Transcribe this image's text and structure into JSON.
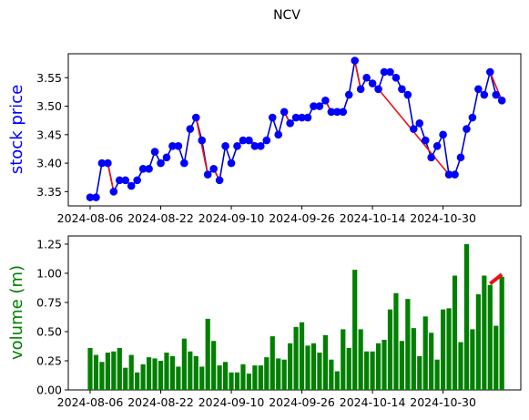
{
  "title": "NCV",
  "colors": {
    "price_line": "#0000cc",
    "price_marker": "#0000ff",
    "trend": "#ee1111",
    "volume_bar": "#008000",
    "ylabel_price": "#0000ff",
    "ylabel_volume": "#008000"
  },
  "chart_data": [
    {
      "type": "line",
      "ylabel": "stock price",
      "xlabel": "",
      "ylim": [
        3.325,
        3.592
      ],
      "yticks": [
        3.35,
        3.4,
        3.45,
        3.5,
        3.55
      ],
      "ytick_labels": [
        "3.35",
        "3.40",
        "3.45",
        "3.50",
        "3.55"
      ],
      "xticks": [
        "2024-08-06",
        "2024-08-22",
        "2024-09-10",
        "2024-09-26",
        "2024-10-14",
        "2024-10-30"
      ],
      "xtick_index": [
        0,
        12,
        24,
        36,
        48,
        60
      ],
      "series": [
        {
          "values": [
            3.34,
            3.34,
            3.4,
            3.4,
            3.35,
            3.37,
            3.37,
            3.36,
            3.37,
            3.39,
            3.39,
            3.42,
            3.4,
            3.41,
            3.43,
            3.43,
            3.4,
            3.46,
            3.48,
            3.44,
            3.38,
            3.39,
            3.37,
            3.43,
            3.4,
            3.43,
            3.44,
            3.44,
            3.43,
            3.43,
            3.44,
            3.48,
            3.45,
            3.49,
            3.47,
            3.48,
            3.48,
            3.48,
            3.5,
            3.5,
            3.51,
            3.49,
            3.49,
            3.49,
            3.52,
            3.58,
            3.53,
            3.55,
            3.54,
            3.53,
            3.56,
            3.56,
            3.55,
            3.53,
            3.52,
            3.46,
            3.47,
            3.44,
            3.41,
            3.43,
            3.45,
            3.38,
            3.38,
            3.41,
            3.46,
            3.48,
            3.53,
            3.52,
            3.56,
            3.52,
            3.51
          ]
        }
      ],
      "trend_segments": [
        [
          3,
          4
        ],
        [
          18,
          20
        ],
        [
          21,
          22
        ],
        [
          27,
          29
        ],
        [
          33,
          34
        ],
        [
          40,
          41
        ],
        [
          45,
          46
        ],
        [
          48,
          49
        ],
        [
          49,
          61
        ],
        [
          68,
          70
        ]
      ]
    },
    {
      "type": "bar",
      "ylabel": "volume (m)",
      "xlabel": "",
      "ylim": [
        0,
        1.32
      ],
      "yticks": [
        0.0,
        0.25,
        0.5,
        0.75,
        1.0,
        1.25
      ],
      "ytick_labels": [
        "0.00",
        "0.25",
        "0.50",
        "0.75",
        "1.00",
        "1.25"
      ],
      "xticks": [
        "2024-08-06",
        "2024-08-22",
        "2024-09-10",
        "2024-09-26",
        "2024-10-14",
        "2024-10-30"
      ],
      "xtick_index": [
        0,
        12,
        24,
        36,
        48,
        60
      ],
      "values": [
        0.36,
        0.3,
        0.24,
        0.32,
        0.33,
        0.36,
        0.19,
        0.3,
        0.15,
        0.22,
        0.28,
        0.27,
        0.25,
        0.32,
        0.29,
        0.2,
        0.44,
        0.33,
        0.29,
        0.2,
        0.61,
        0.42,
        0.21,
        0.24,
        0.15,
        0.15,
        0.22,
        0.14,
        0.21,
        0.21,
        0.28,
        0.46,
        0.27,
        0.26,
        0.4,
        0.54,
        0.58,
        0.38,
        0.4,
        0.32,
        0.47,
        0.26,
        0.16,
        0.52,
        0.36,
        1.03,
        0.52,
        0.33,
        0.33,
        0.4,
        0.43,
        0.69,
        0.83,
        0.42,
        0.78,
        0.53,
        0.29,
        0.63,
        0.49,
        0.26,
        0.69,
        0.7,
        0.98,
        0.41,
        1.25,
        0.52,
        0.82,
        0.98,
        0.9,
        0.55,
        0.97
      ],
      "trend_segment": {
        "x": [
          68,
          70
        ],
        "y": [
          0.91,
          0.99
        ]
      }
    }
  ]
}
